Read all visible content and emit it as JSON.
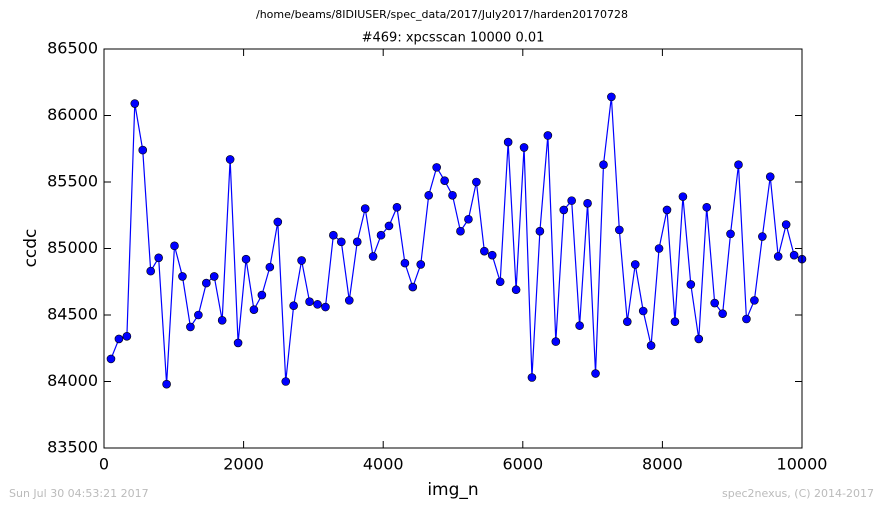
{
  "chart_data": {
    "type": "line",
    "suptitle": "/home/beams/8IDIUSER/spec_data/2017/July2017/harden20170728",
    "title": "#469: xpcsscan 10000 0.01",
    "xlabel": "img_n",
    "ylabel": "ccdc",
    "footer_left": "Sun Jul 30 04:53:21 2017",
    "footer_right": "spec2nexus, (C) 2014-2017",
    "color": "#0000ff",
    "marker": "circle",
    "x": [
      100,
      214,
      328,
      441,
      555,
      669,
      783,
      897,
      1010,
      1124,
      1238,
      1352,
      1466,
      1579,
      1693,
      1807,
      1921,
      2035,
      2148,
      2262,
      2376,
      2490,
      2604,
      2717,
      2831,
      2945,
      3059,
      3173,
      3286,
      3400,
      3514,
      3628,
      3742,
      3855,
      3969,
      4083,
      4197,
      4311,
      4424,
      4538,
      4652,
      4766,
      4880,
      4993,
      5107,
      5221,
      5335,
      5449,
      5562,
      5676,
      5790,
      5904,
      6018,
      6131,
      6245,
      6359,
      6473,
      6587,
      6700,
      6814,
      6928,
      7042,
      7156,
      7269,
      7383,
      7497,
      7611,
      7725,
      7838,
      7952,
      8066,
      8180,
      8294,
      8407,
      8521,
      8635,
      8749,
      8863,
      8976,
      9090,
      9204,
      9318,
      9432,
      9545,
      9659,
      9773,
      9887,
      10000
    ],
    "values": [
      84170,
      84320,
      84340,
      86090,
      85740,
      84830,
      84930,
      83980,
      85020,
      84790,
      84410,
      84500,
      84740,
      84790,
      84460,
      85670,
      84290,
      84920,
      84540,
      84650,
      84860,
      85200,
      84000,
      84570,
      84910,
      84600,
      84580,
      84560,
      85100,
      85050,
      84610,
      85050,
      85300,
      84940,
      85100,
      85170,
      85310,
      84890,
      84710,
      84880,
      85400,
      85610,
      85510,
      85400,
      85130,
      85220,
      85500,
      84980,
      84950,
      84750,
      85800,
      84690,
      85760,
      84030,
      85130,
      85850,
      84300,
      85290,
      85360,
      84420,
      85340,
      84060,
      85630,
      86140,
      85140,
      84450,
      84880,
      84530,
      84270,
      85000,
      85290,
      84450,
      85390,
      84730,
      84320,
      85310,
      84590,
      84510,
      85110,
      85630,
      84470,
      84610,
      85090,
      85540,
      84940,
      85180,
      84950,
      84920
    ],
    "xlim": [
      0,
      10000
    ],
    "xticks": [
      0,
      2000,
      4000,
      6000,
      8000,
      10000
    ],
    "ylim": [
      83500,
      86500
    ],
    "yticks": [
      83500,
      84000,
      84500,
      85000,
      85500,
      86000,
      86500
    ],
    "grid": false
  }
}
